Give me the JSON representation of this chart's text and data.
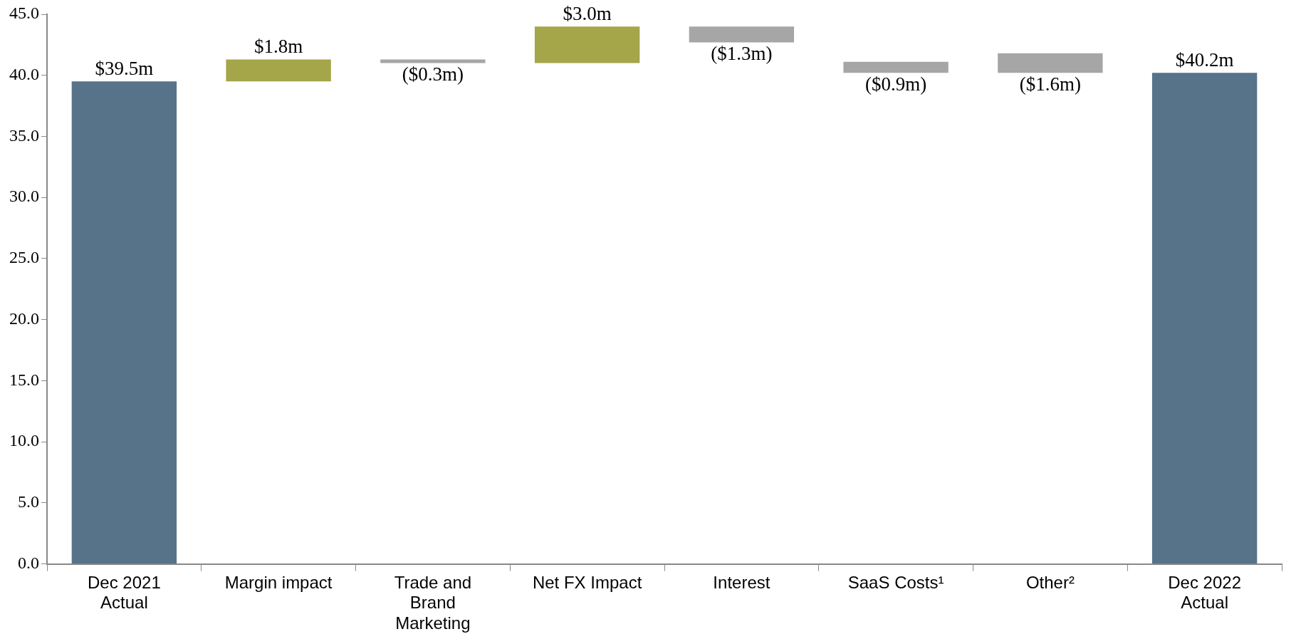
{
  "chart_data": {
    "type": "bar",
    "categories": [
      "Dec 2021 Actual",
      "Margin impact",
      "Trade and Brand Marketing",
      "Net FX Impact",
      "Interest",
      "SaaS Costs¹",
      "Other²",
      "Dec 2022 Actual"
    ],
    "values": [
      39.5,
      1.8,
      -0.3,
      3.0,
      -1.3,
      -0.9,
      -1.6,
      40.2
    ],
    "base": [
      0,
      39.5,
      41.3,
      41.0,
      44.0,
      41.1,
      41.8,
      0
    ],
    "colors": [
      "#56738a",
      "#a5a54a",
      "#a6a6a6",
      "#a5a54a",
      "#a6a6a6",
      "#a6a6a6",
      "#a6a6a6",
      "#56738a"
    ],
    "value_labels": [
      "$39.5m",
      "$1.8m",
      "($0.3m)",
      "$3.0m",
      "($1.3m)",
      "($0.9m)",
      "($1.6m)",
      "$40.2m"
    ],
    "ylim": [
      0,
      45
    ],
    "yticks": [
      {
        "value": 0,
        "label": "0.0"
      },
      {
        "value": 5,
        "label": "5.0"
      },
      {
        "value": 10,
        "label": "10.0"
      },
      {
        "value": 15,
        "label": "15.0"
      },
      {
        "value": 20,
        "label": "20.0"
      },
      {
        "value": 25,
        "label": "25.0"
      },
      {
        "value": 30,
        "label": "30.0"
      },
      {
        "value": 35,
        "label": "35.0"
      },
      {
        "value": 40,
        "label": "40.0"
      },
      {
        "value": 45,
        "label": "45.0"
      }
    ],
    "grid": false,
    "legend": false
  }
}
